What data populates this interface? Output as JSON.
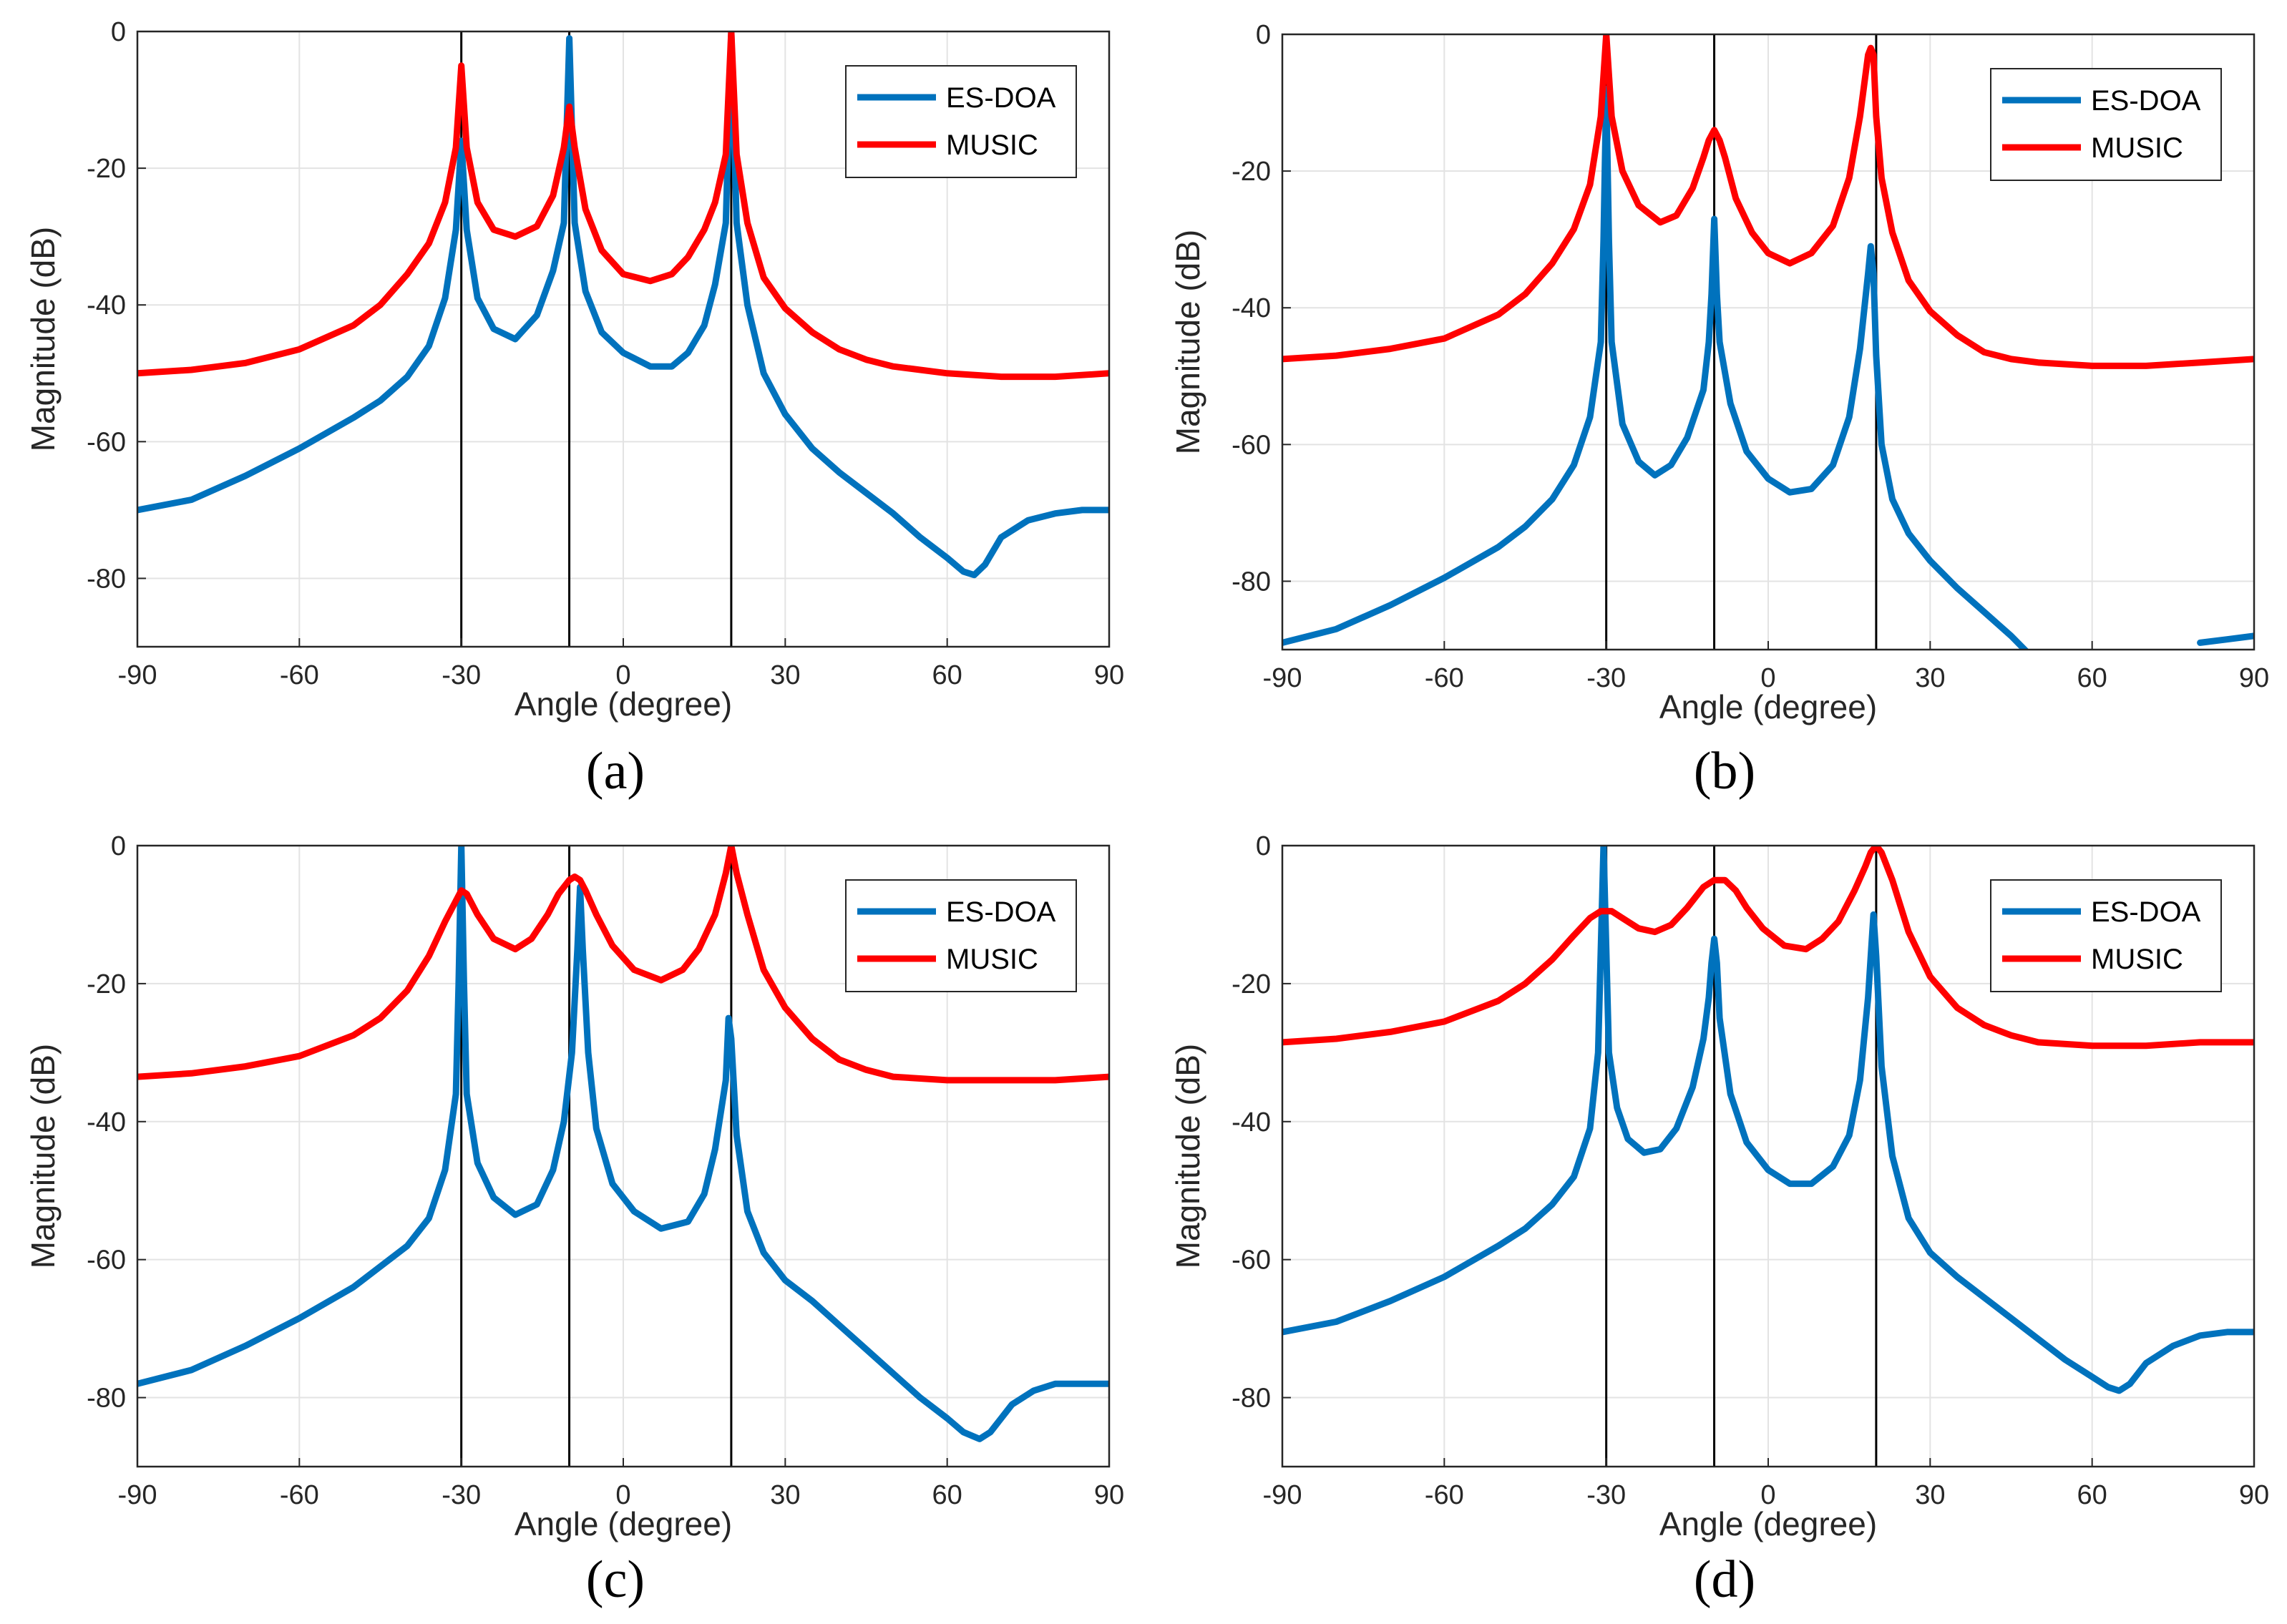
{
  "colors": {
    "es_doa": "#0072BD",
    "music": "#FF0000",
    "true_doa_line": "#000000",
    "grid": "#e3e3e3",
    "axis": "#262626"
  },
  "chart_data": [
    {
      "type": "line",
      "panel": "(a)",
      "xlabel": "Angle (degree)",
      "ylabel": "Magnitude (dB)",
      "xlim": [
        -90,
        90
      ],
      "ylim": [
        -90,
        0
      ],
      "xticks": [
        -90,
        -60,
        -30,
        0,
        30,
        60,
        90
      ],
      "yticks": [
        0,
        -20,
        -40,
        -60,
        -80
      ],
      "grid": true,
      "legend_position": "top-right",
      "true_doa_lines": [
        -30,
        -10,
        20
      ],
      "series": [
        {
          "name": "ES-DOA",
          "color": "#0072BD",
          "x": [
            -90,
            -80,
            -70,
            -60,
            -50,
            -45,
            -40,
            -36,
            -33,
            -31,
            -30,
            -29,
            -27,
            -24,
            -20,
            -16,
            -13,
            -11,
            -10,
            -9,
            -7,
            -4,
            0,
            5,
            9,
            12,
            15,
            17,
            19,
            20,
            21,
            23,
            26,
            30,
            35,
            40,
            45,
            50,
            55,
            60,
            63,
            65,
            67,
            70,
            75,
            80,
            85,
            90
          ],
          "y": [
            -70,
            -68.5,
            -65,
            -61,
            -56.5,
            -54,
            -50.5,
            -46,
            -39,
            -29,
            -16,
            -29,
            -39,
            -43.5,
            -45,
            -41.5,
            -35,
            -28,
            -1,
            -28,
            -38,
            -44,
            -47,
            -49,
            -49,
            -47,
            -43,
            -37,
            -28,
            0,
            -28,
            -40,
            -50,
            -56,
            -61,
            -64.5,
            -67.5,
            -70.5,
            -74,
            -77,
            -79,
            -79.5,
            -78,
            -74,
            -71.5,
            -70.5,
            -70,
            -70
          ]
        },
        {
          "name": "MUSIC",
          "color": "#FF0000",
          "x": [
            -90,
            -80,
            -70,
            -60,
            -50,
            -45,
            -40,
            -36,
            -33,
            -31,
            -30,
            -29,
            -27,
            -24,
            -20,
            -16,
            -13,
            -11,
            -10,
            -9,
            -7,
            -4,
            0,
            5,
            9,
            12,
            15,
            17,
            19,
            20,
            21,
            23,
            26,
            30,
            35,
            40,
            45,
            50,
            60,
            70,
            80,
            90
          ],
          "y": [
            -50,
            -49.5,
            -48.5,
            -46.5,
            -43,
            -40,
            -35.5,
            -31,
            -25,
            -17,
            -5,
            -17,
            -25,
            -29,
            -30,
            -28.5,
            -24,
            -17,
            -11,
            -17,
            -26,
            -32,
            -35.5,
            -36.5,
            -35.5,
            -33,
            -29,
            -25,
            -18,
            0,
            -18,
            -28,
            -36,
            -40.5,
            -44,
            -46.5,
            -48,
            -49,
            -50,
            -50.5,
            -50.5,
            -50
          ]
        }
      ]
    },
    {
      "type": "line",
      "panel": "(b)",
      "xlabel": "Angle (degree)",
      "ylabel": "Magnitude (dB)",
      "xlim": [
        -90,
        90
      ],
      "ylim": [
        -90,
        0
      ],
      "xticks": [
        -90,
        -60,
        -30,
        0,
        30,
        60,
        90
      ],
      "yticks": [
        0,
        -20,
        -40,
        -60,
        -80
      ],
      "grid": true,
      "legend_position": "top-right",
      "true_doa_lines": [
        -30,
        -10,
        20
      ],
      "series": [
        {
          "name": "ES-DOA",
          "color": "#0072BD",
          "x": [
            -90,
            -80,
            -70,
            -60,
            -50,
            -45,
            -40,
            -36,
            -33,
            -31,
            -30.5,
            -30,
            -29.5,
            -29,
            -27,
            -24,
            -21,
            -18,
            -15,
            -12,
            -11,
            -10.5,
            -10,
            -9.5,
            -9,
            -7,
            -4,
            0,
            4,
            8,
            12,
            15,
            17,
            18.5,
            19,
            19.5,
            20,
            21,
            23,
            26,
            30,
            35,
            40,
            45,
            50,
            53,
            55
          ],
          "y": [
            -89,
            -87,
            -83.5,
            -79.5,
            -75,
            -72,
            -68,
            -63,
            -56,
            -45,
            -30,
            -8,
            -30,
            -45,
            -57,
            -62.5,
            -64.5,
            -63,
            -59,
            -52,
            -45,
            -38,
            -27,
            -38,
            -45,
            -54,
            -61,
            -65,
            -67,
            -66.5,
            -63,
            -56,
            -46,
            -35,
            -31,
            -35,
            -47,
            -60,
            -68,
            -73,
            -77,
            -81,
            -84.5,
            -88,
            -92,
            -95,
            -98
          ]
        },
        {
          "name": "ES-DOA",
          "color": "#0072BD",
          "legend": false,
          "x": [
            80,
            85,
            90
          ],
          "y": [
            -89,
            -88.5,
            -88
          ]
        },
        {
          "name": "MUSIC",
          "color": "#FF0000",
          "x": [
            -90,
            -80,
            -70,
            -60,
            -50,
            -45,
            -40,
            -36,
            -33,
            -31,
            -30,
            -29,
            -27,
            -24,
            -20,
            -17,
            -14,
            -12,
            -11,
            -10,
            -9,
            -8,
            -6,
            -3,
            0,
            4,
            8,
            12,
            15,
            17,
            18.5,
            19,
            19.5,
            20,
            21,
            23,
            26,
            30,
            35,
            40,
            45,
            50,
            60,
            70,
            80,
            90
          ],
          "y": [
            -47.5,
            -47,
            -46,
            -44.5,
            -41,
            -38,
            -33.5,
            -28.5,
            -22,
            -12,
            0,
            -12,
            -20,
            -25,
            -27.5,
            -26.5,
            -22.5,
            -18,
            -15.5,
            -14,
            -15.5,
            -18,
            -24,
            -29,
            -32,
            -33.5,
            -32,
            -28,
            -21,
            -12,
            -3,
            -2,
            -3,
            -12,
            -21,
            -29,
            -36,
            -40.5,
            -44,
            -46.5,
            -47.5,
            -48,
            -48.5,
            -48.5,
            -48,
            -47.5
          ]
        }
      ]
    },
    {
      "type": "line",
      "panel": "(c)",
      "xlabel": "Angle (degree)",
      "ylabel": "Magnitude (dB)",
      "xlim": [
        -90,
        90
      ],
      "ylim": [
        -90,
        0
      ],
      "xticks": [
        -90,
        -60,
        -30,
        0,
        30,
        60,
        90
      ],
      "yticks": [
        0,
        -20,
        -40,
        -60,
        -80
      ],
      "grid": true,
      "legend_position": "top-right",
      "true_doa_lines": [
        -30,
        -10,
        20
      ],
      "series": [
        {
          "name": "ES-DOA",
          "color": "#0072BD",
          "x": [
            -90,
            -80,
            -70,
            -60,
            -50,
            -45,
            -40,
            -36,
            -33,
            -31,
            -30.5,
            -30,
            -29.5,
            -29,
            -27,
            -24,
            -20,
            -16,
            -13,
            -11,
            -9.5,
            -8.5,
            -8,
            -7.5,
            -6.5,
            -5,
            -2,
            2,
            7,
            12,
            15,
            17,
            19,
            19.5,
            20,
            21,
            23,
            26,
            30,
            35,
            40,
            45,
            50,
            55,
            60,
            63,
            66,
            68,
            72,
            76,
            80,
            85,
            90
          ],
          "y": [
            -78,
            -76,
            -72.5,
            -68.5,
            -64,
            -61,
            -58,
            -54,
            -47,
            -36,
            -20,
            0,
            -20,
            -36,
            -46,
            -51,
            -53.5,
            -52,
            -47,
            -40,
            -30,
            -15,
            -6,
            -15,
            -30,
            -41,
            -49,
            -53,
            -55.5,
            -54.5,
            -50.5,
            -44,
            -34,
            -25,
            -28,
            -42,
            -53,
            -59,
            -63,
            -66,
            -69.5,
            -73,
            -76.5,
            -80,
            -83,
            -85,
            -86,
            -85,
            -81,
            -79,
            -78,
            -78,
            -78
          ]
        },
        {
          "name": "MUSIC",
          "color": "#FF0000",
          "x": [
            -90,
            -80,
            -70,
            -60,
            -50,
            -45,
            -40,
            -36,
            -33,
            -31,
            -30,
            -29,
            -27,
            -24,
            -20,
            -17,
            -14,
            -12,
            -10,
            -9,
            -8,
            -7,
            -5,
            -2,
            2,
            7,
            11,
            14,
            17,
            19,
            20,
            21,
            23,
            26,
            30,
            35,
            40,
            45,
            50,
            60,
            70,
            80,
            90
          ],
          "y": [
            -33.5,
            -33,
            -32,
            -30.5,
            -27.5,
            -25,
            -21,
            -16,
            -11,
            -8,
            -6.5,
            -7,
            -10,
            -13.5,
            -15,
            -13.5,
            -10,
            -7,
            -5,
            -4.5,
            -5,
            -6.5,
            -10,
            -14.5,
            -18,
            -19.5,
            -18,
            -15,
            -10,
            -4,
            0,
            -4,
            -10,
            -18,
            -23.5,
            -28,
            -31,
            -32.5,
            -33.5,
            -34,
            -34,
            -34,
            -33.5
          ]
        }
      ]
    },
    {
      "type": "line",
      "panel": "(d)",
      "xlabel": "Angle (degree)",
      "ylabel": "Magnitude (dB)",
      "xlim": [
        -90,
        90
      ],
      "ylim": [
        -90,
        0
      ],
      "xticks": [
        -90,
        -60,
        -30,
        0,
        30,
        60,
        90
      ],
      "yticks": [
        0,
        -20,
        -40,
        -60,
        -80
      ],
      "grid": true,
      "legend_position": "top-right",
      "true_doa_lines": [
        -30,
        -10,
        20
      ],
      "series": [
        {
          "name": "ES-DOA",
          "color": "#0072BD",
          "x": [
            -90,
            -80,
            -70,
            -60,
            -50,
            -45,
            -40,
            -36,
            -33,
            -31.5,
            -31,
            -30.5,
            -30,
            -29.5,
            -28,
            -26,
            -23,
            -20,
            -17,
            -14,
            -12,
            -11,
            -10.5,
            -10,
            -9.5,
            -9,
            -7,
            -4,
            0,
            4,
            8,
            12,
            15,
            17,
            18.5,
            19.5,
            20,
            21,
            23,
            26,
            30,
            35,
            40,
            45,
            50,
            55,
            60,
            63,
            65,
            67,
            70,
            75,
            80,
            85,
            90
          ],
          "y": [
            -70.5,
            -69,
            -66,
            -62.5,
            -58,
            -55.5,
            -52,
            -48,
            -41,
            -30,
            -15,
            0,
            -15,
            -30,
            -38,
            -42.5,
            -44.5,
            -44,
            -41,
            -35,
            -28,
            -22,
            -17,
            -13.5,
            -17,
            -25,
            -36,
            -43,
            -47,
            -49,
            -49,
            -46.5,
            -42,
            -34,
            -22,
            -10,
            -16,
            -32,
            -45,
            -54,
            -59,
            -62.5,
            -65.5,
            -68.5,
            -71.5,
            -74.5,
            -77,
            -78.5,
            -79,
            -78,
            -75,
            -72.5,
            -71,
            -70.5,
            -70.5
          ]
        },
        {
          "name": "MUSIC",
          "color": "#FF0000",
          "x": [
            -90,
            -80,
            -70,
            -60,
            -50,
            -45,
            -40,
            -36,
            -33,
            -31,
            -29,
            -27,
            -24,
            -21,
            -18,
            -15,
            -12,
            -10,
            -8,
            -6,
            -4,
            -1,
            3,
            7,
            10,
            13,
            16,
            18,
            19,
            20,
            21,
            23,
            26,
            30,
            35,
            40,
            45,
            50,
            60,
            70,
            80,
            90
          ],
          "y": [
            -28.5,
            -28,
            -27,
            -25.5,
            -22.5,
            -20,
            -16.5,
            -13,
            -10.5,
            -9.5,
            -9.5,
            -10.5,
            -12,
            -12.5,
            -11.5,
            -9,
            -6,
            -5,
            -5,
            -6.5,
            -9,
            -12,
            -14.5,
            -15,
            -13.5,
            -11,
            -6.5,
            -3,
            -1,
            0,
            -1,
            -5,
            -12.5,
            -19,
            -23.5,
            -26,
            -27.5,
            -28.5,
            -29,
            -29,
            -28.5,
            -28.5
          ]
        }
      ]
    }
  ]
}
